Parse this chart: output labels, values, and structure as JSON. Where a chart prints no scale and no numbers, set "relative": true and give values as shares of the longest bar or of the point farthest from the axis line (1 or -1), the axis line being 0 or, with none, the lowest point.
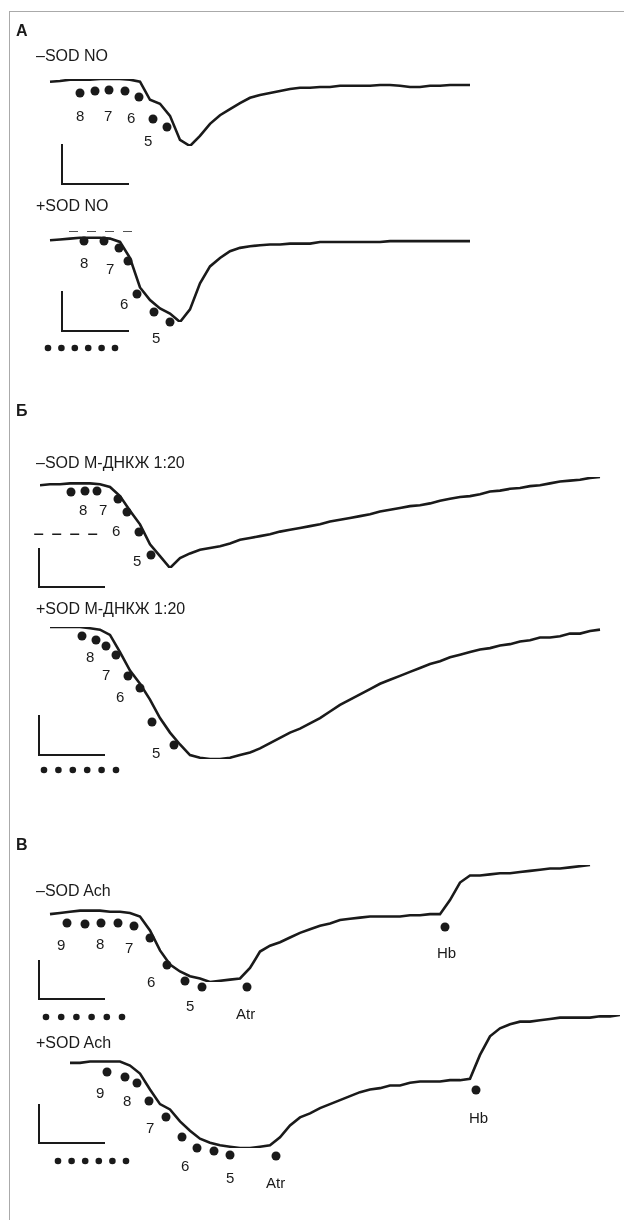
{
  "chart_data": [
    {
      "type": "line",
      "relative": true,
      "title": "–SOD NO",
      "annotations": [
        "А",
        "8",
        "7",
        "6",
        "5"
      ],
      "categories": [
        null,
        null,
        null,
        null,
        null,
        null,
        null,
        null,
        null,
        null,
        null,
        null,
        null,
        null,
        null,
        null,
        null,
        null,
        null,
        null,
        null,
        null,
        null,
        null,
        null,
        null,
        null,
        null,
        null,
        null,
        null,
        null,
        null,
        null,
        null,
        null,
        null,
        null,
        null,
        null,
        null,
        null,
        null,
        null,
        null,
        null,
        null,
        null,
        null,
        null,
        null,
        null,
        null,
        null,
        null,
        null,
        null,
        null,
        null
      ],
      "series": [
        {
          "color": "#1a1a1a",
          "values": [
            null,
            0.96,
            0.97,
            0.99,
            0.99,
            0.99,
            1,
            1,
            1,
            0.99,
            0.96,
            0.69,
            0.63,
            0.45,
            0.09,
            0,
            0.15,
            0.33,
            0.46,
            0.55,
            0.64,
            0.72,
            0.76,
            0.79,
            0.82,
            0.85,
            0.87,
            0.87,
            0.88,
            0.88,
            0.9,
            0.9,
            0.9,
            0.9,
            0.91,
            0.91,
            0.9,
            0.88,
            0.88,
            0.9,
            0.9,
            0.91,
            0.91,
            0.91,
            null,
            null,
            null,
            null,
            null,
            null,
            null,
            null,
            null,
            null,
            null,
            null,
            null,
            null,
            null
          ]
        }
      ]
    },
    {
      "type": "line",
      "relative": true,
      "title": "+SOD NO",
      "annotations": [
        "8",
        "7",
        "6",
        "5"
      ],
      "categories": [
        null,
        null,
        null,
        null,
        null,
        null,
        null,
        null,
        null,
        null,
        null,
        null,
        null,
        null,
        null,
        null,
        null,
        null,
        null,
        null,
        null,
        null,
        null,
        null,
        null,
        null,
        null,
        null,
        null,
        null,
        null,
        null,
        null,
        null,
        null,
        null,
        null,
        null,
        null,
        null,
        null,
        null,
        null,
        null,
        null,
        null,
        null,
        null,
        null,
        null,
        null,
        null,
        null,
        null,
        null,
        null,
        null,
        null,
        null
      ],
      "ref_lines": [
        {
          "axis": "y",
          "value": 1.08,
          "line_style": "dashed",
          "color": "#1a1a1a"
        }
      ],
      "series": [
        {
          "color": "#1a1a1a",
          "values": [
            null,
            0.97,
            0.98,
            0.99,
            1,
            1,
            1,
            0.99,
            0.95,
            0.76,
            0.41,
            0.26,
            0.16,
            0.1,
            0,
            0.15,
            0.46,
            0.66,
            0.76,
            0.84,
            0.88,
            0.9,
            0.91,
            0.92,
            0.92,
            0.93,
            0.93,
            0.93,
            0.95,
            0.95,
            0.95,
            0.95,
            0.95,
            0.95,
            0.95,
            0.96,
            0.96,
            0.96,
            0.96,
            0.96,
            0.96,
            0.96,
            0.96,
            0.96,
            null,
            null,
            null,
            null,
            null,
            null,
            null,
            null,
            null,
            null,
            null,
            null,
            null,
            null,
            null
          ]
        }
      ]
    },
    {
      "type": "line",
      "relative": true,
      "title": "–SOD М-ДНКЖ 1:20",
      "annotations": [
        "Б",
        "8",
        "7",
        "6",
        "5"
      ],
      "categories": [
        null,
        null,
        null,
        null,
        null,
        null,
        null,
        null,
        null,
        null,
        null,
        null,
        null,
        null,
        null,
        null,
        null,
        null,
        null,
        null,
        null,
        null,
        null,
        null,
        null,
        null,
        null,
        null,
        null,
        null,
        null,
        null,
        null,
        null,
        null,
        null,
        null,
        null,
        null,
        null,
        null,
        null,
        null,
        null,
        null,
        null,
        null,
        null,
        null,
        null,
        null,
        null,
        null,
        null,
        null,
        null,
        null,
        null,
        null
      ],
      "ref_lines": [
        {
          "axis": "y",
          "value": 0.37,
          "line_style": "dashed",
          "color": "#1a1a1a"
        }
      ],
      "series": [
        {
          "color": "#1a1a1a",
          "values": [
            0.91,
            0.92,
            0.92,
            0.93,
            0.93,
            0.93,
            0.92,
            0.89,
            0.79,
            0.63,
            0.48,
            0.26,
            0.13,
            0,
            0.11,
            0.16,
            0.2,
            0.22,
            0.24,
            0.27,
            0.31,
            0.33,
            0.35,
            0.37,
            0.4,
            0.42,
            0.44,
            0.46,
            0.48,
            0.51,
            0.53,
            0.55,
            0.57,
            0.59,
            0.62,
            0.64,
            0.66,
            0.68,
            0.69,
            0.71,
            0.74,
            0.76,
            0.78,
            0.79,
            0.81,
            0.84,
            0.85,
            0.87,
            0.88,
            0.9,
            0.91,
            0.93,
            0.95,
            0.96,
            0.97,
            0.99,
            1,
            null,
            null
          ]
        }
      ]
    },
    {
      "type": "line",
      "relative": true,
      "title": "+SOD М-ДНКЖ 1:20",
      "annotations": [
        "8",
        "7",
        "6",
        "5"
      ],
      "categories": [
        null,
        null,
        null,
        null,
        null,
        null,
        null,
        null,
        null,
        null,
        null,
        null,
        null,
        null,
        null,
        null,
        null,
        null,
        null,
        null,
        null,
        null,
        null,
        null,
        null,
        null,
        null,
        null,
        null,
        null,
        null,
        null,
        null,
        null,
        null,
        null,
        null,
        null,
        null,
        null,
        null,
        null,
        null,
        null,
        null,
        null,
        null,
        null,
        null,
        null,
        null,
        null,
        null,
        null,
        null,
        null,
        null,
        null,
        null
      ],
      "series": [
        {
          "color": "#1a1a1a",
          "values": [
            null,
            1,
            1,
            1,
            1,
            0.99,
            0.98,
            0.94,
            0.81,
            0.67,
            0.57,
            0.45,
            0.31,
            0.2,
            0.11,
            0.03,
            0.01,
            0,
            0,
            0.01,
            0.03,
            0.05,
            0.08,
            0.12,
            0.16,
            0.2,
            0.23,
            0.27,
            0.31,
            0.36,
            0.41,
            0.45,
            0.49,
            0.53,
            0.57,
            0.6,
            0.63,
            0.66,
            0.69,
            0.72,
            0.74,
            0.77,
            0.79,
            0.81,
            0.83,
            0.84,
            0.86,
            0.87,
            0.89,
            0.9,
            0.92,
            0.92,
            0.93,
            0.95,
            0.95,
            0.97,
            0.98,
            null,
            null
          ]
        }
      ]
    },
    {
      "type": "line",
      "relative": true,
      "title": "–SOD Ach",
      "annotations": [
        "В",
        "9",
        "8",
        "7",
        "6",
        "5",
        "Atr",
        "Hb"
      ],
      "categories": [
        null,
        null,
        null,
        null,
        null,
        null,
        null,
        null,
        null,
        null,
        null,
        null,
        null,
        null,
        null,
        null,
        null,
        null,
        null,
        null,
        null,
        null,
        null,
        null,
        null,
        null,
        null,
        null,
        null,
        null,
        null,
        null,
        null,
        null,
        null,
        null,
        null,
        null,
        null,
        null,
        null,
        null,
        null,
        null,
        null,
        null,
        null,
        null,
        null,
        null,
        null,
        null,
        null,
        null,
        null,
        null,
        null,
        null,
        null
      ],
      "series": [
        {
          "color": "#1a1a1a",
          "values": [
            null,
            0.58,
            0.59,
            0.6,
            0.61,
            0.61,
            0.61,
            0.6,
            0.6,
            0.59,
            0.56,
            0.44,
            0.27,
            0.15,
            0.09,
            0.05,
            0.03,
            0,
            0.01,
            0.02,
            0.03,
            0.12,
            0.26,
            0.31,
            0.34,
            0.38,
            0.42,
            0.45,
            0.48,
            0.5,
            0.53,
            0.54,
            0.55,
            0.56,
            0.56,
            0.56,
            0.56,
            0.57,
            0.57,
            0.58,
            0.58,
            0.7,
            0.85,
            0.91,
            0.91,
            0.92,
            0.93,
            0.93,
            0.94,
            0.95,
            0.96,
            0.97,
            0.97,
            0.98,
            0.99,
            1,
            null,
            null,
            null
          ]
        }
      ]
    },
    {
      "type": "line",
      "relative": true,
      "title": "+SOD Ach",
      "annotations": [
        "9",
        "8",
        "7",
        "6",
        "5",
        "Atr",
        "Hb"
      ],
      "categories": [
        null,
        null,
        null,
        null,
        null,
        null,
        null,
        null,
        null,
        null,
        null,
        null,
        null,
        null,
        null,
        null,
        null,
        null,
        null,
        null,
        null,
        null,
        null,
        null,
        null,
        null,
        null,
        null,
        null,
        null,
        null,
        null,
        null,
        null,
        null,
        null,
        null,
        null,
        null,
        null,
        null,
        null,
        null,
        null,
        null,
        null,
        null,
        null,
        null,
        null,
        null,
        null,
        null,
        null,
        null,
        null,
        null,
        null,
        null
      ],
      "series": [
        {
          "color": "#1a1a1a",
          "values": [
            null,
            null,
            null,
            0.64,
            0.64,
            0.65,
            0.65,
            0.65,
            0.65,
            0.62,
            0.56,
            0.44,
            0.33,
            0.29,
            0.2,
            0.13,
            0.07,
            0.04,
            0.02,
            0.01,
            0,
            0,
            0.01,
            0.02,
            0.08,
            0.17,
            0.23,
            0.26,
            0.3,
            0.33,
            0.36,
            0.39,
            0.42,
            0.44,
            0.45,
            0.47,
            0.47,
            0.49,
            0.5,
            0.5,
            0.5,
            0.51,
            0.51,
            0.52,
            0.7,
            0.84,
            0.9,
            0.93,
            0.95,
            0.95,
            0.96,
            0.97,
            0.98,
            0.98,
            0.98,
            0.98,
            0.99,
            0.99,
            1
          ]
        }
      ]
    }
  ]
}
